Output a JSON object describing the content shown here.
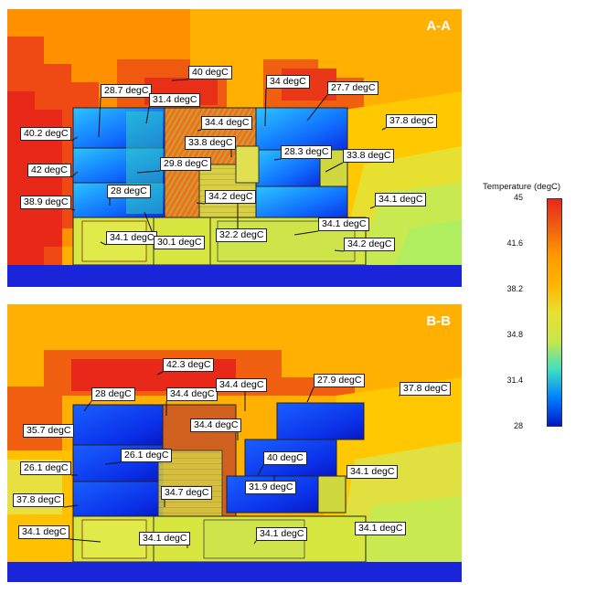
{
  "sections": [
    {
      "label": "A-A",
      "callouts": [
        "40 degC",
        "28.7 degC",
        "31.4 degC",
        "34 degC",
        "27.7 degC",
        "37.8 degC",
        "40.2 degC",
        "34.4 degC",
        "33.8 degC",
        "28.3 degC",
        "33.8 degC",
        "42 degC",
        "29.8 degC",
        "38.9 degC",
        "28 degC",
        "34.2 degC",
        "34.1 degC",
        "34.1 degC",
        "34.1 degC",
        "30.1 degC",
        "32.2 degC",
        "34.2 degC"
      ]
    },
    {
      "label": "B-B",
      "callouts": [
        "42.3 degC",
        "37.8 degC",
        "28 degC",
        "34.4 degC",
        "34.4 degC",
        "27.9 degC",
        "35.7 degC",
        "34.4 degC",
        "26.1 degC",
        "40 degC",
        "26.1 degC",
        "34.1 degC",
        "37.8 degC",
        "34.7 degC",
        "31.9 degC",
        "34.1 degC",
        "34.1 degC",
        "34.1 degC",
        "34.1 degC"
      ]
    }
  ],
  "legend": {
    "title": "Temperature (degC)",
    "ticks": [
      "45",
      "41.6",
      "38.2",
      "34.8",
      "31.4",
      "28"
    ]
  },
  "colors": {
    "hot": "#e8281c",
    "warm": "#ff9a00",
    "ambient": "#ffb400",
    "mild": "#c8e64a",
    "cool": "#0080ff",
    "cold": "#0018c8",
    "ground": "#1a24d8"
  }
}
